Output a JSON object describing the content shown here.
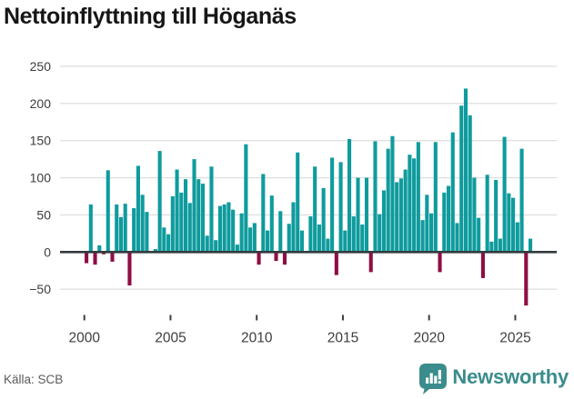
{
  "header": {
    "title": "Nettoinflyttning till Höganäs"
  },
  "footer": {
    "source": "Källa: SCB",
    "brand": "Newsworthy"
  },
  "colors": {
    "positive_bar": "#0f9b9d",
    "negative_bar": "#8e0e44",
    "grid": "#e0e0e0",
    "zero_line": "#333b3e",
    "axis_text": "#3d3d3d",
    "brand_teal": "#3b8c8c",
    "source_text": "#5a5a5a"
  },
  "chart_data": {
    "type": "bar",
    "title": "Nettoinflyttning till Höganäs",
    "xlabel": "",
    "ylabel": "",
    "frequency": "quarterly",
    "grid": "horizontal",
    "legend": "none",
    "yticks": [
      250,
      200,
      150,
      100,
      50,
      0,
      -50
    ],
    "xticks": [
      2000,
      2005,
      2010,
      2015,
      2020,
      2025
    ],
    "ylim": [
      -85,
      265
    ],
    "years": [
      {
        "year": 2000,
        "values": [
          -15,
          64,
          -17,
          9
        ]
      },
      {
        "year": 2001,
        "values": [
          -3,
          110,
          -13,
          64
        ]
      },
      {
        "year": 2002,
        "values": [
          47,
          65,
          -45,
          59
        ]
      },
      {
        "year": 2003,
        "values": [
          116,
          77,
          54,
          0
        ]
      },
      {
        "year": 2004,
        "values": [
          4,
          136,
          33,
          24
        ]
      },
      {
        "year": 2005,
        "values": [
          75,
          111,
          80,
          98
        ]
      },
      {
        "year": 2006,
        "values": [
          66,
          125,
          98,
          92
        ]
      },
      {
        "year": 2007,
        "values": [
          22,
          115,
          16,
          62
        ]
      },
      {
        "year": 2008,
        "values": [
          64,
          67,
          57,
          10
        ]
      },
      {
        "year": 2009,
        "values": [
          52,
          145,
          33,
          39
        ]
      },
      {
        "year": 2010,
        "values": [
          -17,
          105,
          29,
          76
        ]
      },
      {
        "year": 2011,
        "values": [
          -12,
          55,
          -17,
          38
        ]
      },
      {
        "year": 2012,
        "values": [
          67,
          134,
          29,
          0
        ]
      },
      {
        "year": 2013,
        "values": [
          48,
          115,
          37,
          86
        ]
      },
      {
        "year": 2014,
        "values": [
          18,
          127,
          -31,
          121
        ]
      },
      {
        "year": 2015,
        "values": [
          29,
          152,
          48,
          100
        ]
      },
      {
        "year": 2016,
        "values": [
          37,
          100,
          -27,
          149
        ]
      },
      {
        "year": 2017,
        "values": [
          51,
          83,
          139,
          156
        ]
      },
      {
        "year": 2018,
        "values": [
          94,
          99,
          111,
          131
        ]
      },
      {
        "year": 2019,
        "values": [
          126,
          148,
          43,
          77
        ]
      },
      {
        "year": 2020,
        "values": [
          52,
          148,
          -27,
          80
        ]
      },
      {
        "year": 2021,
        "values": [
          89,
          161,
          39,
          197
        ]
      },
      {
        "year": 2022,
        "values": [
          220,
          184,
          100,
          46
        ]
      },
      {
        "year": 2023,
        "values": [
          -35,
          104,
          14,
          97
        ]
      },
      {
        "year": 2024,
        "values": [
          18,
          155,
          79,
          73
        ]
      },
      {
        "year": 2025,
        "values": [
          40,
          139,
          -72,
          18
        ]
      }
    ]
  }
}
